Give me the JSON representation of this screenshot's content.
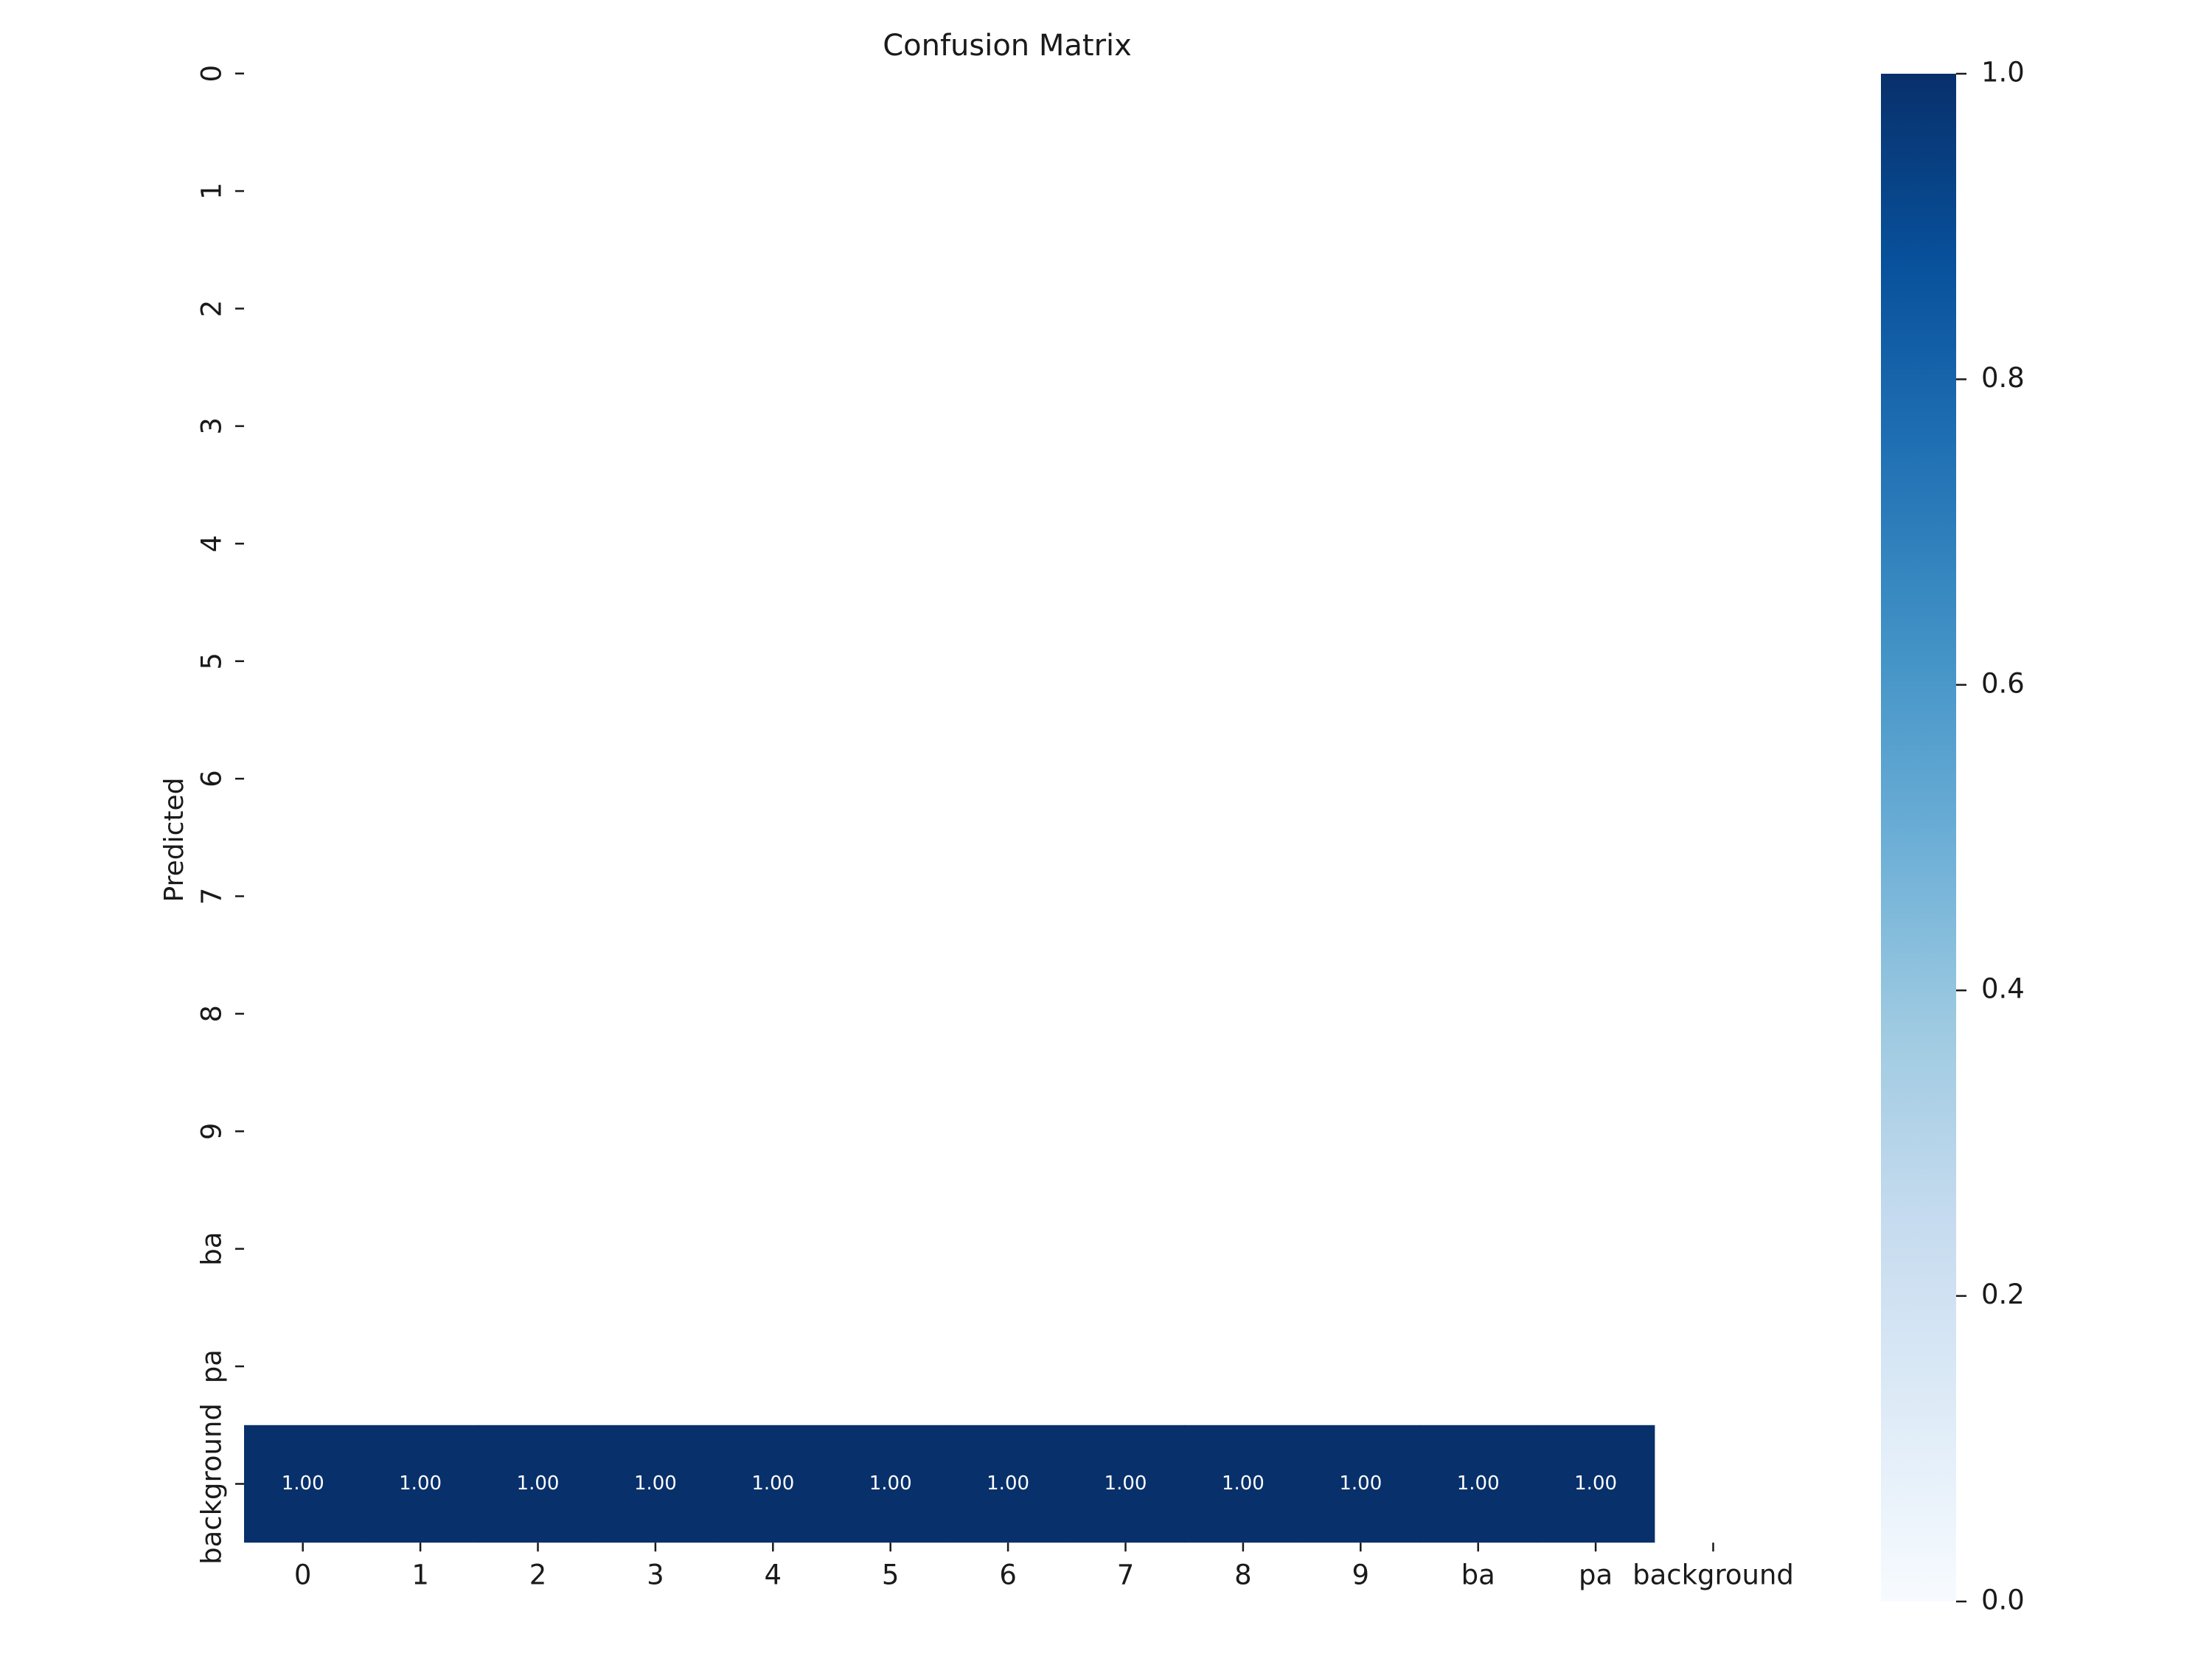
{
  "chart_data": {
    "type": "heatmap",
    "title": "Confusion Matrix",
    "xlabel": "",
    "ylabel": "Predicted",
    "x_categories": [
      "0",
      "1",
      "2",
      "3",
      "4",
      "5",
      "6",
      "7",
      "8",
      "9",
      "ba",
      "pa",
      "background"
    ],
    "y_categories": [
      "0",
      "1",
      "2",
      "3",
      "4",
      "5",
      "6",
      "7",
      "8",
      "9",
      "ba",
      "pa",
      "background"
    ],
    "cells": [
      {
        "row": "background",
        "col": "0",
        "value": 1.0,
        "label": "1.00"
      },
      {
        "row": "background",
        "col": "1",
        "value": 1.0,
        "label": "1.00"
      },
      {
        "row": "background",
        "col": "2",
        "value": 1.0,
        "label": "1.00"
      },
      {
        "row": "background",
        "col": "3",
        "value": 1.0,
        "label": "1.00"
      },
      {
        "row": "background",
        "col": "4",
        "value": 1.0,
        "label": "1.00"
      },
      {
        "row": "background",
        "col": "5",
        "value": 1.0,
        "label": "1.00"
      },
      {
        "row": "background",
        "col": "6",
        "value": 1.0,
        "label": "1.00"
      },
      {
        "row": "background",
        "col": "7",
        "value": 1.0,
        "label": "1.00"
      },
      {
        "row": "background",
        "col": "8",
        "value": 1.0,
        "label": "1.00"
      },
      {
        "row": "background",
        "col": "9",
        "value": 1.0,
        "label": "1.00"
      },
      {
        "row": "background",
        "col": "ba",
        "value": 1.0,
        "label": "1.00"
      },
      {
        "row": "background",
        "col": "pa",
        "value": 1.0,
        "label": "1.00"
      }
    ],
    "colorbar": {
      "range": [
        0.0,
        1.0
      ],
      "ticks": [
        "0.0",
        "0.2",
        "0.4",
        "0.6",
        "0.8",
        "1.0"
      ],
      "colormap": "Blues",
      "colors": [
        "#f7fbff",
        "#deebf7",
        "#c6dbef",
        "#9ecae1",
        "#6baed6",
        "#4292c6",
        "#2171b5",
        "#08519c",
        "#08306b"
      ]
    },
    "cell_color": "#08306b",
    "annotation_color": "#ffffff",
    "grid": false
  }
}
